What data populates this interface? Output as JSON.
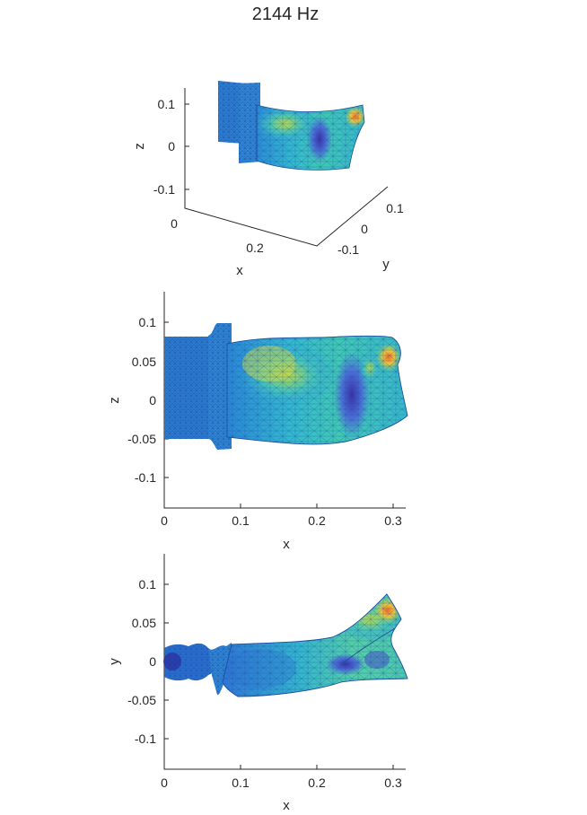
{
  "figure": {
    "title": "2144 Hz"
  },
  "panels": [
    {
      "id": "iso",
      "view": "3d",
      "x_label": "x",
      "y_label": "y",
      "z_label": "z",
      "z_ticks": [
        "0.1",
        "0",
        "-0.1"
      ],
      "x_ticks": [
        "0",
        "0.2"
      ],
      "y_ticks": [
        "0.1",
        "0",
        "-0.1"
      ]
    },
    {
      "id": "xz",
      "view": "side",
      "x_label": "x",
      "y_label": "z",
      "x_ticks": [
        "0",
        "0.1",
        "0.2",
        "0.3"
      ],
      "y_ticks": [
        "0.1",
        "0.05",
        "0",
        "-0.05",
        "-0.1"
      ],
      "x_range": [
        0,
        0.31
      ],
      "y_range": [
        -0.14,
        0.14
      ]
    },
    {
      "id": "xy",
      "view": "top",
      "x_label": "x",
      "y_label": "y",
      "x_ticks": [
        "0",
        "0.1",
        "0.2",
        "0.3"
      ],
      "y_ticks": [
        "0.1",
        "0.05",
        "0",
        "-0.05",
        "-0.1"
      ],
      "x_range": [
        0,
        0.31
      ],
      "y_range": [
        -0.14,
        0.14
      ]
    }
  ],
  "colors": {
    "colormap": "turbo",
    "mesh_edge": "#1d4fa0",
    "low": "#3a3fb0",
    "base": "#2a8ad8",
    "mid": "#34c0c8",
    "highmid": "#a6d84a",
    "high": "#f07028"
  }
}
